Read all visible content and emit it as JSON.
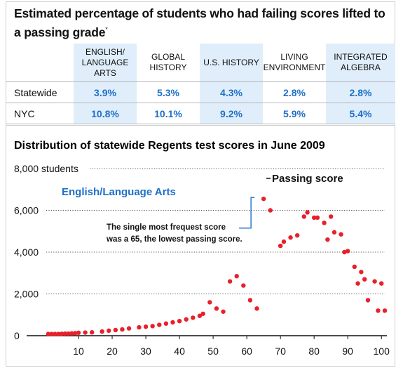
{
  "table": {
    "title": "Estimated percentage of students who had failing scores lifted to a passing grade",
    "title_mark": "*",
    "columns": [
      {
        "label": "English/ Language Arts",
        "shaded": true
      },
      {
        "label": "Global History",
        "shaded": false
      },
      {
        "label": "U.S. History",
        "shaded": true
      },
      {
        "label": "Living Environment",
        "shaded": false
      },
      {
        "label": "Integrated Algebra",
        "shaded": true
      }
    ],
    "rows": [
      {
        "label": "Statewide",
        "values": [
          "3.9%",
          "5.3%",
          "4.3%",
          "2.8%",
          "2.8%"
        ]
      },
      {
        "label": "NYC",
        "values": [
          "10.8%",
          "10.1%",
          "9.2%",
          "5.9%",
          "5.4%"
        ]
      }
    ],
    "value_color": "#1f6fc8",
    "shade_color": "#dfeefa"
  },
  "chart_data": {
    "type": "scatter",
    "title": "Distribution of statewide Regents test scores in June 2009",
    "series": [
      {
        "name": "English/Language Arts",
        "color": "#e8202a",
        "points": [
          [
            1,
            80
          ],
          [
            2,
            80
          ],
          [
            3,
            80
          ],
          [
            4,
            80
          ],
          [
            5,
            90
          ],
          [
            6,
            100
          ],
          [
            7,
            100
          ],
          [
            8,
            110
          ],
          [
            9,
            120
          ],
          [
            10,
            140
          ],
          [
            12,
            150
          ],
          [
            14,
            160
          ],
          [
            17,
            200
          ],
          [
            19,
            240
          ],
          [
            21,
            270
          ],
          [
            23,
            300
          ],
          [
            25,
            350
          ],
          [
            28,
            400
          ],
          [
            30,
            430
          ],
          [
            32,
            460
          ],
          [
            34,
            520
          ],
          [
            36,
            580
          ],
          [
            38,
            640
          ],
          [
            40,
            700
          ],
          [
            42,
            780
          ],
          [
            44,
            860
          ],
          [
            46,
            950
          ],
          [
            47,
            1050
          ],
          [
            49,
            1600
          ],
          [
            51,
            1300
          ],
          [
            53,
            1150
          ],
          [
            55,
            2600
          ],
          [
            57,
            2850
          ],
          [
            59,
            2400
          ],
          [
            61,
            1700
          ],
          [
            63,
            1300
          ],
          [
            65,
            6550
          ],
          [
            67,
            6000
          ],
          [
            70,
            4300
          ],
          [
            71,
            4500
          ],
          [
            73,
            4700
          ],
          [
            75,
            4800
          ],
          [
            77,
            5700
          ],
          [
            78,
            5900
          ],
          [
            80,
            5650
          ],
          [
            81,
            5650
          ],
          [
            83,
            5400
          ],
          [
            84,
            4600
          ],
          [
            85,
            5700
          ],
          [
            86,
            4950
          ],
          [
            88,
            4850
          ],
          [
            89,
            4000
          ],
          [
            90,
            4050
          ],
          [
            92,
            3300
          ],
          [
            93,
            2500
          ],
          [
            94,
            3050
          ],
          [
            95,
            2700
          ],
          [
            96,
            1700
          ],
          [
            98,
            2600
          ],
          [
            99,
            1200
          ],
          [
            100,
            2500
          ],
          [
            101,
            1200
          ]
        ]
      }
    ],
    "xlim": [
      0,
      101
    ],
    "ylim": [
      0,
      8000
    ],
    "x_ticks": [
      10,
      20,
      30,
      40,
      50,
      60,
      70,
      80,
      90,
      100
    ],
    "y_ticks": [
      {
        "value": 0,
        "label": "0"
      },
      {
        "value": 2000,
        "label": "2,000"
      },
      {
        "value": 4000,
        "label": "4,000"
      },
      {
        "value": 6000,
        "label": "6,000"
      },
      {
        "value": 8000,
        "label": "8,000 students"
      }
    ],
    "grid": "dotted horizontal",
    "passing_score": {
      "value": 65,
      "label": "Passing score"
    },
    "annotation": {
      "line1": "The single most frequest score",
      "line2": "was a 65, the lowest passing score.",
      "color": "#1f6fc8"
    }
  }
}
